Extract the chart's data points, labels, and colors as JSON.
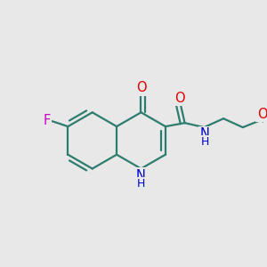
{
  "bg_color": "#e8e8e8",
  "bond_color": "#2d7d6e",
  "atom_colors": {
    "F": "#cc00cc",
    "O": "#dd0000",
    "N": "#0000cc",
    "C": "#2d7d6e"
  },
  "bond_width": 1.6,
  "font_size": 10.5,
  "figsize": [
    3.0,
    3.0
  ],
  "dpi": 100
}
